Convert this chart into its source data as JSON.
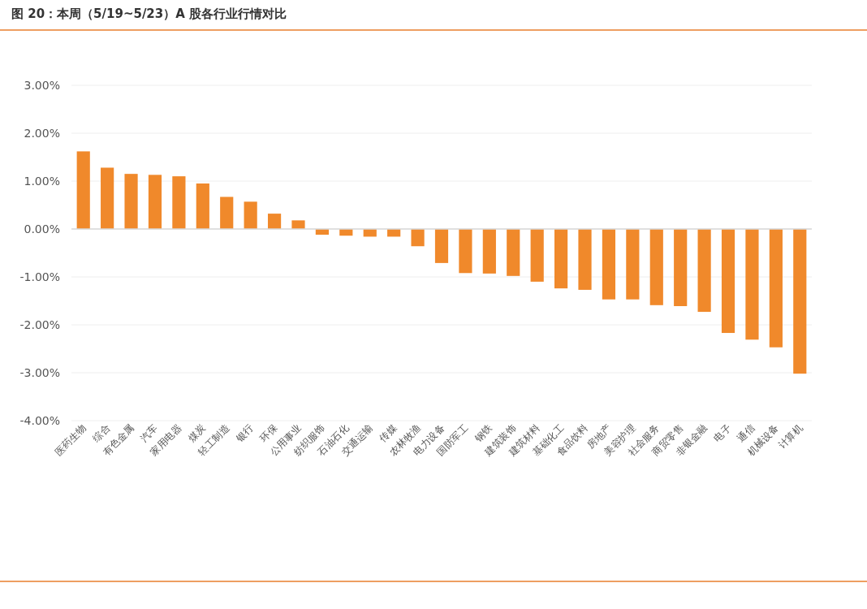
{
  "chart_data": {
    "type": "bar",
    "title": "图 20：本周（5/19~5/23）A 股各行业行情对比",
    "categories": [
      "医药生物",
      "综合",
      "有色金属",
      "汽车",
      "家用电器",
      "煤炭",
      "轻工制造",
      "银行",
      "环保",
      "公用事业",
      "纺织服饰",
      "石油石化",
      "交通运输",
      "传媒",
      "农林牧渔",
      "电力设备",
      "国防军工",
      "钢铁",
      "建筑装饰",
      "建筑材料",
      "基础化工",
      "食品饮料",
      "房地产",
      "美容护理",
      "社会服务",
      "商贸零售",
      "非银金融",
      "电子",
      "通信",
      "机械设备",
      "计算机"
    ],
    "values": [
      1.62,
      1.28,
      1.15,
      1.13,
      1.1,
      0.95,
      0.67,
      0.57,
      0.32,
      0.18,
      -0.12,
      -0.14,
      -0.16,
      -0.16,
      -0.36,
      -0.71,
      -0.92,
      -0.93,
      -0.98,
      -1.1,
      -1.24,
      -1.27,
      -1.47,
      -1.47,
      -1.59,
      -1.61,
      -1.73,
      -2.17,
      -2.31,
      -2.47,
      -3.02
    ],
    "color": "#f0892b",
    "ylim": [
      -4,
      3
    ],
    "yticks": [
      {
        "value": -4,
        "label": "-4.00%"
      },
      {
        "value": -3,
        "label": "-3.00%"
      },
      {
        "value": -2,
        "label": "-2.00%"
      },
      {
        "value": -1,
        "label": "-1.00%"
      },
      {
        "value": 0,
        "label": "0.00%"
      },
      {
        "value": 1,
        "label": "1.00%"
      },
      {
        "value": 2,
        "label": "2.00%"
      },
      {
        "value": 3,
        "label": "3.00%"
      }
    ],
    "grid": "y"
  }
}
